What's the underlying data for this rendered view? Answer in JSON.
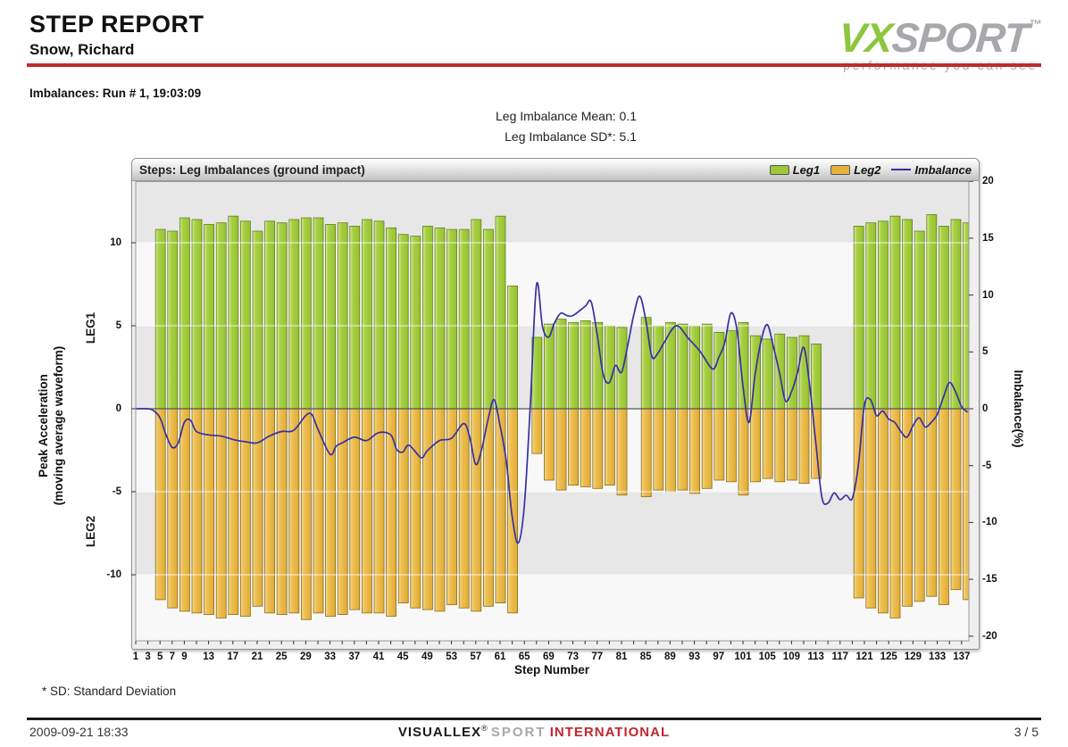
{
  "header": {
    "title": "STEP REPORT",
    "subtitle": "Snow, Richard",
    "logo": {
      "vx": "VX",
      "sport": "SPORT",
      "tm": "TM",
      "tagline": "performance you can see"
    }
  },
  "report": {
    "section_label": "Imbalances: Run # 1, 19:03:09",
    "mean_line": "Leg Imbalance Mean: 0.1",
    "sd_line": "Leg Imbalance SD*: 5.1"
  },
  "footnote": "* SD: Standard Deviation",
  "footer": {
    "datetime": "2009-09-21 18:33",
    "brand": {
      "name": "VISUALLEX",
      "reg": "®",
      "sport": "SPORT",
      "international": "INTERNATIONAL"
    },
    "page": "3 / 5"
  },
  "colors": {
    "leg1_fill": "#9dc83b",
    "leg1_border": "#64801e",
    "leg2_fill": "#e6b23a",
    "leg2_border": "#8a6d1f",
    "imbalance_line": "#3730a3",
    "accent_red": "#bf2b30",
    "logo_green": "#8dc63f",
    "logo_gray": "#a6a8ab",
    "band_gray": "#e7e7e7",
    "band_white": "#f8f8f8"
  },
  "chart_data": {
    "type": "bar",
    "title": "Steps: Leg Imbalances (ground impact)",
    "legend": [
      {
        "label": "Leg1",
        "type": "box",
        "color": "#9dc83b"
      },
      {
        "label": "Leg2",
        "type": "box",
        "color": "#e6b23a"
      },
      {
        "label": "Imbalance",
        "type": "line",
        "color": "#3730a3"
      }
    ],
    "stats": {
      "leg_imbalance_mean": 0.1,
      "leg_imbalance_sd": 5.1
    },
    "x_axis": {
      "title": "Step Number",
      "min": 1,
      "max": 138,
      "tick_labels": [
        1,
        3,
        5,
        7,
        9,
        13,
        17,
        21,
        25,
        29,
        33,
        37,
        41,
        45,
        49,
        53,
        57,
        61,
        65,
        69,
        73,
        77,
        81,
        85,
        89,
        93,
        97,
        101,
        105,
        109,
        113,
        117,
        121,
        125,
        129,
        133,
        137
      ]
    },
    "y_left": {
      "title_line1": "Peak Acceleration",
      "title_line2": "(moving average waveform)",
      "region_labels": [
        "LEG1",
        "LEG2"
      ],
      "ticks": [
        10,
        5,
        0,
        -5,
        -10
      ],
      "range": [
        -14,
        13.7
      ],
      "grid": true
    },
    "y_right": {
      "title": "Imbalance(%)",
      "ticks": [
        20,
        15,
        10,
        5,
        0,
        -5,
        -10,
        -15,
        -20
      ],
      "range": [
        -20,
        20
      ]
    },
    "bars_format": [
      "step",
      "leg1",
      "leg2"
    ],
    "bars": [
      [
        5,
        10.8,
        -11.5
      ],
      [
        7,
        10.7,
        -12.0
      ],
      [
        9,
        11.5,
        -12.2
      ],
      [
        11,
        11.4,
        -12.3
      ],
      [
        13,
        11.1,
        -12.4
      ],
      [
        15,
        11.2,
        -12.6
      ],
      [
        17,
        11.6,
        -12.4
      ],
      [
        19,
        11.3,
        -12.5
      ],
      [
        21,
        10.7,
        -11.9
      ],
      [
        23,
        11.3,
        -12.3
      ],
      [
        25,
        11.2,
        -12.4
      ],
      [
        27,
        11.4,
        -12.3
      ],
      [
        29,
        11.5,
        -12.7
      ],
      [
        31,
        11.5,
        -12.3
      ],
      [
        33,
        11.1,
        -12.5
      ],
      [
        35,
        11.2,
        -12.4
      ],
      [
        37,
        11.0,
        -12.1
      ],
      [
        39,
        11.4,
        -12.3
      ],
      [
        41,
        11.3,
        -12.3
      ],
      [
        43,
        10.9,
        -12.5
      ],
      [
        45,
        10.5,
        -11.7
      ],
      [
        47,
        10.4,
        -12.0
      ],
      [
        49,
        11.0,
        -12.1
      ],
      [
        51,
        10.9,
        -12.2
      ],
      [
        53,
        10.8,
        -11.8
      ],
      [
        55,
        10.8,
        -12.0
      ],
      [
        57,
        11.4,
        -12.2
      ],
      [
        59,
        10.8,
        -11.9
      ],
      [
        61,
        11.6,
        -11.7
      ],
      [
        63,
        7.4,
        -12.3
      ],
      [
        67,
        4.3,
        -2.7
      ],
      [
        69,
        5.1,
        -4.3
      ],
      [
        71,
        5.4,
        -4.9
      ],
      [
        73,
        5.2,
        -4.6
      ],
      [
        75,
        5.3,
        -4.7
      ],
      [
        77,
        5.2,
        -4.8
      ],
      [
        79,
        5.0,
        -4.6
      ],
      [
        81,
        4.9,
        -5.2
      ],
      [
        85,
        5.5,
        -5.3
      ],
      [
        87,
        5.0,
        -4.9
      ],
      [
        89,
        5.2,
        -5.0
      ],
      [
        91,
        5.1,
        -4.9
      ],
      [
        93,
        5.0,
        -5.1
      ],
      [
        95,
        5.1,
        -4.8
      ],
      [
        97,
        4.6,
        -4.3
      ],
      [
        99,
        4.7,
        -4.4
      ],
      [
        101,
        5.2,
        -5.2
      ],
      [
        103,
        4.4,
        -4.4
      ],
      [
        105,
        4.2,
        -4.2
      ],
      [
        107,
        4.5,
        -4.4
      ],
      [
        109,
        4.3,
        -4.3
      ],
      [
        111,
        4.4,
        -4.5
      ],
      [
        113,
        3.9,
        -4.2
      ],
      [
        120,
        11.0,
        -11.4
      ],
      [
        122,
        11.2,
        -12.0
      ],
      [
        124,
        11.3,
        -12.3
      ],
      [
        126,
        11.6,
        -12.6
      ],
      [
        128,
        11.4,
        -11.9
      ],
      [
        130,
        10.7,
        -11.6
      ],
      [
        132,
        11.7,
        -11.3
      ],
      [
        134,
        11.0,
        -11.8
      ],
      [
        136,
        11.4,
        -10.9
      ],
      [
        138,
        11.2,
        -11.5
      ]
    ],
    "imbalance_line_format": [
      "step",
      "imbalance_pct"
    ],
    "imbalance_line": [
      [
        1,
        0
      ],
      [
        3,
        0
      ],
      [
        4,
        -0.2
      ],
      [
        5,
        -0.8
      ],
      [
        6,
        -2.3
      ],
      [
        7,
        -3.4
      ],
      [
        8,
        -3.0
      ],
      [
        9,
        -1.2
      ],
      [
        10,
        -1.0
      ],
      [
        11,
        -2.0
      ],
      [
        13,
        -2.3
      ],
      [
        15,
        -2.4
      ],
      [
        17,
        -2.7
      ],
      [
        19,
        -2.9
      ],
      [
        21,
        -3.0
      ],
      [
        23,
        -2.4
      ],
      [
        25,
        -2.0
      ],
      [
        27,
        -1.9
      ],
      [
        29,
        -0.6
      ],
      [
        30,
        -0.5
      ],
      [
        31,
        -1.8
      ],
      [
        33,
        -4.0
      ],
      [
        34,
        -3.3
      ],
      [
        35,
        -3.0
      ],
      [
        37,
        -2.5
      ],
      [
        39,
        -2.8
      ],
      [
        41,
        -2.1
      ],
      [
        43,
        -2.3
      ],
      [
        44,
        -3.6
      ],
      [
        45,
        -3.8
      ],
      [
        46,
        -3.2
      ],
      [
        48,
        -4.3
      ],
      [
        49,
        -3.7
      ],
      [
        51,
        -2.8
      ],
      [
        53,
        -2.6
      ],
      [
        55,
        -1.3
      ],
      [
        56,
        -2.5
      ],
      [
        57,
        -4.9
      ],
      [
        58,
        -3.5
      ],
      [
        59,
        -1.0
      ],
      [
        60,
        0.8
      ],
      [
        61,
        -1.5
      ],
      [
        62,
        -4.5
      ],
      [
        63,
        -9.5
      ],
      [
        64,
        -11.8
      ],
      [
        65,
        -8.5
      ],
      [
        66,
        0.5
      ],
      [
        67,
        10.9
      ],
      [
        68,
        7.2
      ],
      [
        69,
        6.3
      ],
      [
        70,
        7.6
      ],
      [
        71,
        8.4
      ],
      [
        72,
        8.2
      ],
      [
        73,
        8.2
      ],
      [
        75,
        9.0
      ],
      [
        76,
        9.4
      ],
      [
        77,
        6.5
      ],
      [
        78,
        3.0
      ],
      [
        79,
        2.3
      ],
      [
        80,
        3.8
      ],
      [
        81,
        3.2
      ],
      [
        82,
        5.5
      ],
      [
        83,
        8.2
      ],
      [
        84,
        9.9
      ],
      [
        85,
        7.8
      ],
      [
        86,
        4.6
      ],
      [
        87,
        4.9
      ],
      [
        88,
        5.8
      ],
      [
        90,
        7.3
      ],
      [
        92,
        6.2
      ],
      [
        94,
        5.0
      ],
      [
        96,
        3.5
      ],
      [
        97,
        4.5
      ],
      [
        98,
        5.8
      ],
      [
        99,
        8.4
      ],
      [
        100,
        7.0
      ],
      [
        101,
        2.0
      ],
      [
        102,
        -1.2
      ],
      [
        103,
        3.0
      ],
      [
        104,
        6.0
      ],
      [
        105,
        7.4
      ],
      [
        106,
        5.5
      ],
      [
        107,
        3.2
      ],
      [
        108,
        0.7
      ],
      [
        109,
        1.5
      ],
      [
        110,
        3.2
      ],
      [
        111,
        5.4
      ],
      [
        112,
        2.0
      ],
      [
        113,
        -3.0
      ],
      [
        114,
        -7.8
      ],
      [
        115,
        -8.3
      ],
      [
        116,
        -7.4
      ],
      [
        117,
        -8.0
      ],
      [
        118,
        -7.6
      ],
      [
        119,
        -7.9
      ],
      [
        120,
        -5.0
      ],
      [
        121,
        0.3
      ],
      [
        122,
        0.8
      ],
      [
        123,
        -0.6
      ],
      [
        124,
        -0.2
      ],
      [
        125,
        -0.9
      ],
      [
        126,
        -1.2
      ],
      [
        127,
        -2.0
      ],
      [
        128,
        -2.5
      ],
      [
        129,
        -1.5
      ],
      [
        130,
        -0.8
      ],
      [
        131,
        -1.6
      ],
      [
        132,
        -1.2
      ],
      [
        133,
        -0.5
      ],
      [
        134,
        1.0
      ],
      [
        135,
        2.3
      ],
      [
        136,
        1.5
      ],
      [
        137,
        0.2
      ],
      [
        138,
        -0.3
      ]
    ]
  }
}
